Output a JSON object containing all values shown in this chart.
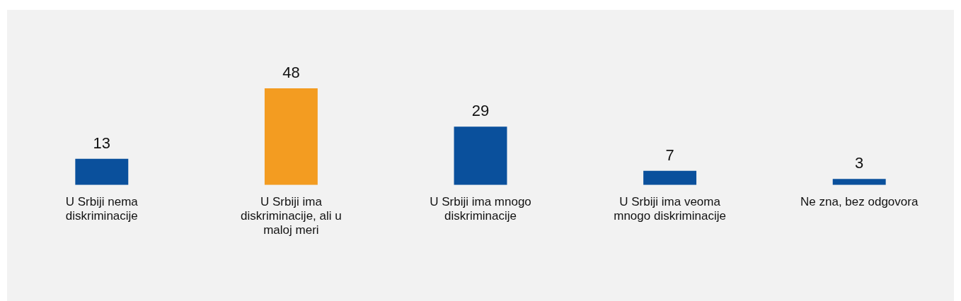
{
  "chart_data": {
    "type": "bar",
    "categories": [
      "U Srbiji nema diskriminacije",
      "U Srbiji ima diskriminacije, ali u maloj meri",
      "U Srbiji ima mnogo diskriminacije",
      "U Srbiji ima veoma mnogo diskriminacije",
      "Ne zna, bez odgovora"
    ],
    "values": [
      13,
      48,
      29,
      7,
      3
    ],
    "colors": [
      "#0a509c",
      "#f39c21",
      "#0a509c",
      "#0a509c",
      "#0a509c"
    ],
    "data_labels": true
  }
}
